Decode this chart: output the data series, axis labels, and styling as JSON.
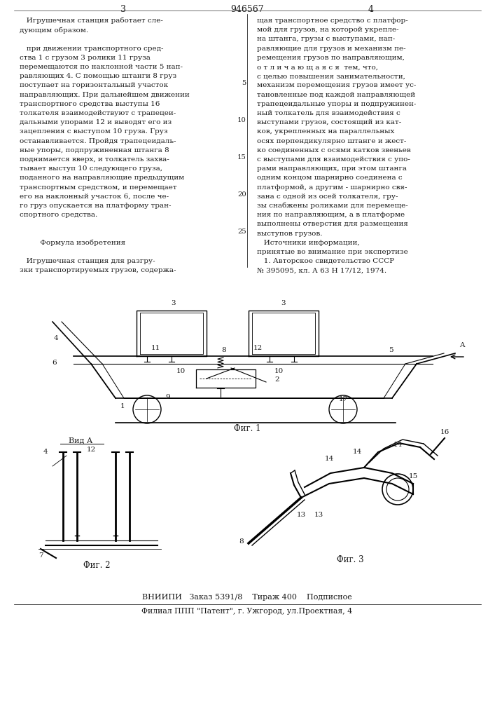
{
  "title_number": "946567",
  "page_left": "3",
  "page_right": "4",
  "background_color": "#ffffff",
  "text_color": "#1a1a1a",
  "col1_lines": [
    "   Игрушечная станция работает сле-",
    "дующим образом.",
    "",
    "   при движении транспортного сред-",
    "ства 1 с грузом 3 ролики 11 груза",
    "перемещаются по наклонной части 5 нап-",
    "равляющих 4. С помощью штанги 8 груз",
    "поступает на горизонтальный участок",
    "направляющих. При дальнейшем движении",
    "транспортного средства выступы 16",
    "толкателя взаимодействуют с трапецеи-",
    "дальными упорами 12 и выводят его из",
    "зацепления с выступом 10 груза. Груз",
    "останавливается. Пройдя трапецеидаль-",
    "ные упоры, подпружиненная штанга 8",
    "поднимается вверх, и толкатель захва-",
    "тывает выступ 10 следующего груза,",
    "поданного на направляющие предыдущим",
    "транспортным средством, и перемещает",
    "его на наклонный участок 6, после че-",
    "го груз опускается на платформу тран-",
    "спортного средства.",
    "",
    "",
    "         Формула изобретения",
    "",
    "   Игрушечная станция для разгру-",
    "зки транспортируемых грузов, содержа-"
  ],
  "col2_lines": [
    "щая транспортное средство с платфор-",
    "мой для грузов, на которой укрепле-",
    "на штанга, грузы с выступами, нап-",
    "равляющие для грузов и механизм пе-",
    "ремещения грузов по направляющим,",
    "о т л и ч а ю щ а я с я  тем, что,",
    "с целью повышения занимательности,",
    "механизм перемещения грузов имеет ус-",
    "тановленные под каждой направляющей",
    "трапецеидальные упоры и подпружинен-",
    "ный толкатель для взаимодействия с",
    "выступами грузов, состоящий из кат-",
    "ков, укрепленных на параллельных",
    "осях перпендикулярно штанге и жест-",
    "ко соединенных с осями катков звеньев",
    "с выступами для взаимодействия с упо-",
    "рами направляющих, при этом штанга",
    "одним концом шарнирно соединена с",
    "платформой, а другим - шарнирно свя-",
    "зана с одной из осей толкателя, гру-",
    "зы снабжены роликами для перемеще-",
    "ния по направляющим, а в платформе",
    "выполнены отверстия для размещения",
    "выступов грузов.",
    "   Источники информации,",
    "принятые во внимание при экспертизе",
    "   1. Авторское свидетельство СССР",
    "№ 395095, кл. А 63 Н 17/12, 1974."
  ],
  "line_numbers": [
    5,
    10,
    15,
    20,
    25
  ],
  "line_number_rows": [
    7,
    11,
    15,
    19,
    23
  ],
  "footer_line1": "ВНИИПИ   Заказ 5391/8    Тираж 400    Подписное",
  "footer_line2": "Филиал ППП \"Патент\", г. Ужгород, ул.Проектная, 4",
  "fig1_label": "Фиг. 1",
  "fig2_label": "Фиг. 2",
  "fig3_label": "Фиг. 3",
  "vid_a_label": "Вид А"
}
